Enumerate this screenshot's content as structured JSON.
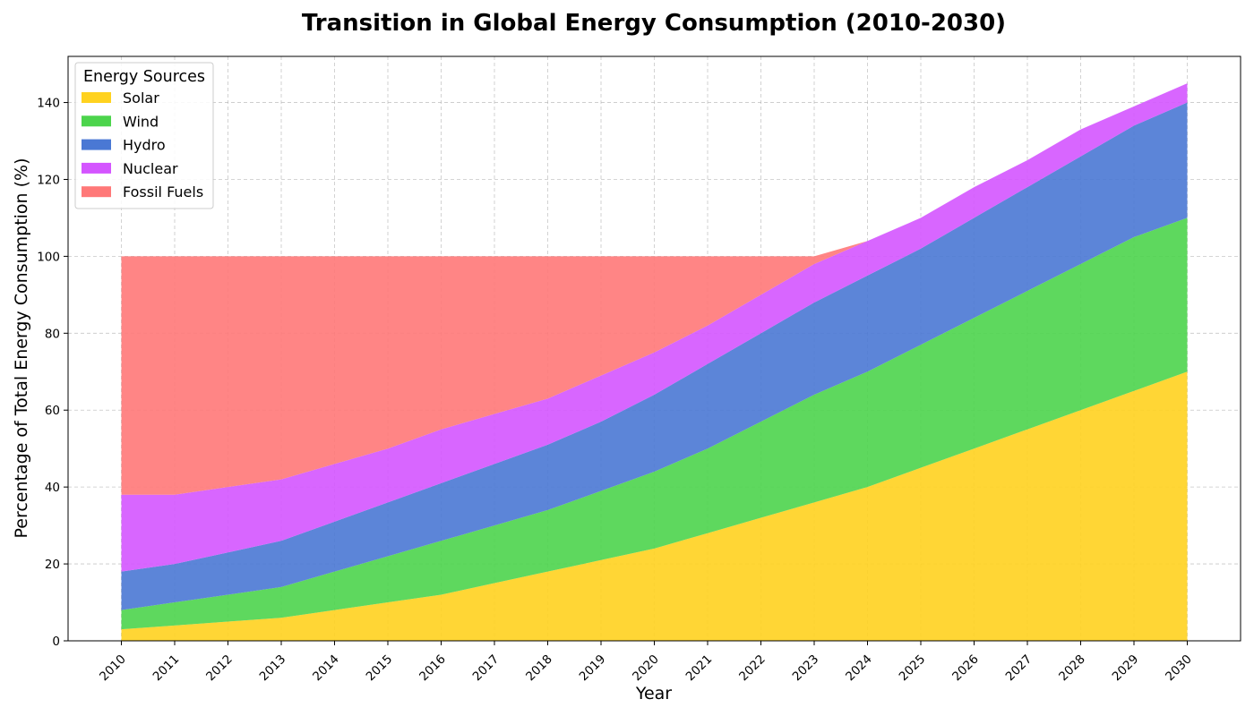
{
  "chart_data": {
    "type": "area",
    "stacked": true,
    "title": "Transition in Global Energy Consumption (2010-2030)",
    "xlabel": "Year",
    "ylabel": "Percentage of Total Energy Consumption (%)",
    "x": [
      2010,
      2011,
      2012,
      2013,
      2014,
      2015,
      2016,
      2017,
      2018,
      2019,
      2020,
      2021,
      2022,
      2023,
      2024,
      2025,
      2026,
      2027,
      2028,
      2029,
      2030
    ],
    "xlim": [
      2009,
      2031
    ],
    "ylim": [
      0,
      152
    ],
    "yticks": [
      0,
      20,
      40,
      60,
      80,
      100,
      120,
      140
    ],
    "grid": true,
    "legend": {
      "title": "Energy Sources",
      "placement": "upper-left"
    },
    "series": [
      {
        "name": "Solar",
        "color": "#ffd21f",
        "values": [
          3,
          4,
          5,
          6,
          8,
          10,
          12,
          15,
          18,
          21,
          24,
          28,
          32,
          36,
          40,
          45,
          50,
          55,
          60,
          65,
          70
        ]
      },
      {
        "name": "Wind",
        "color": "#4cd44c",
        "values": [
          5,
          6,
          7,
          8,
          10,
          12,
          14,
          15,
          16,
          18,
          20,
          22,
          25,
          28,
          30,
          32,
          34,
          36,
          38,
          40,
          40
        ]
      },
      {
        "name": "Hydro",
        "color": "#4a78d4",
        "values": [
          10,
          10,
          11,
          12,
          13,
          14,
          15,
          16,
          17,
          18,
          20,
          22,
          23,
          24,
          25,
          25,
          26,
          27,
          28,
          29,
          30
        ]
      },
      {
        "name": "Nuclear",
        "color": "#d455ff",
        "values": [
          20,
          18,
          17,
          16,
          15,
          14,
          14,
          13,
          12,
          12,
          11,
          10,
          10,
          10,
          9,
          8,
          8,
          7,
          7,
          5,
          5
        ]
      },
      {
        "name": "Fossil Fuels",
        "color": "#ff7878",
        "values": [
          62,
          62,
          60,
          58,
          54,
          50,
          45,
          41,
          37,
          31,
          25,
          18,
          10,
          2,
          0,
          0,
          0,
          0,
          0,
          0,
          0
        ]
      }
    ],
    "overflow_band": {
      "color": "#f3466e",
      "bottom": [
        38,
        38,
        40,
        42,
        46,
        50,
        55,
        59,
        63,
        69,
        75,
        82,
        90,
        98,
        104,
        110,
        118,
        125,
        133,
        139,
        145
      ],
      "top": [
        38,
        38,
        40,
        42,
        46,
        50,
        55,
        59,
        63,
        69,
        75,
        82,
        90,
        98,
        104,
        110,
        118,
        125,
        133,
        139,
        145
      ]
    }
  }
}
